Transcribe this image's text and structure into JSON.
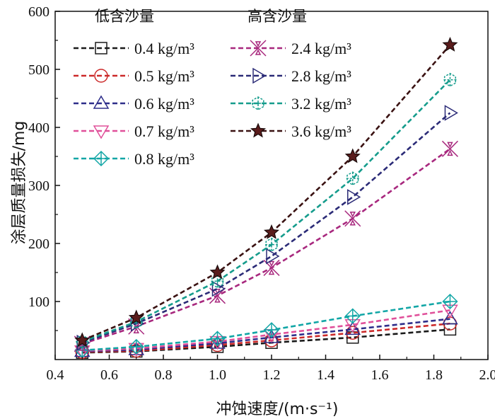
{
  "chart_data": {
    "type": "line",
    "xlabel": "冲蚀速度/(m·s⁻¹)",
    "ylabel": "涂层质量损失/mg",
    "xlim": [
      0.4,
      2.0
    ],
    "ylim": [
      0,
      600
    ],
    "xticks": [
      "0.4",
      "0.6",
      "0.8",
      "1.0",
      "1.2",
      "1.4",
      "1.6",
      "1.8",
      "2.0"
    ],
    "yticks": [
      "100",
      "200",
      "300",
      "400",
      "500",
      "600"
    ],
    "grid": false,
    "x": [
      0.5,
      0.7,
      1.0,
      1.2,
      1.5,
      1.86
    ],
    "legend_groups": [
      {
        "title": "低含沙量",
        "placement": "top-left"
      },
      {
        "title": "高含沙量",
        "placement": "top-center"
      }
    ],
    "series": [
      {
        "name": "0.4 kg/m³",
        "group": 0,
        "color": "#1a1a1a",
        "marker": "square",
        "values": [
          12,
          14,
          22,
          29,
          38,
          52
        ]
      },
      {
        "name": "0.5 kg/m³",
        "group": 0,
        "color": "#cc2a2a",
        "marker": "circle",
        "values": [
          13,
          15,
          25,
          33,
          46,
          62
        ]
      },
      {
        "name": "0.6 kg/m³",
        "group": 0,
        "color": "#2e2e8a",
        "marker": "triangle-up",
        "values": [
          14,
          17,
          28,
          38,
          52,
          70
        ]
      },
      {
        "name": "0.7 kg/m³",
        "group": 0,
        "color": "#e0509a",
        "marker": "triangle-down",
        "values": [
          15,
          19,
          31,
          43,
          60,
          85
        ]
      },
      {
        "name": "0.8 kg/m³",
        "group": 0,
        "color": "#12a6a6",
        "marker": "diamond-cross",
        "values": [
          16,
          22,
          36,
          51,
          75,
          100
        ]
      },
      {
        "name": "2.4 kg/m³",
        "group": 1,
        "color": "#a8287e",
        "marker": "x-cross",
        "values": [
          27,
          57,
          110,
          158,
          243,
          363
        ]
      },
      {
        "name": "2.8 kg/m³",
        "group": 1,
        "color": "#2b2b77",
        "marker": "triangle-right",
        "values": [
          29,
          62,
          122,
          178,
          280,
          425
        ]
      },
      {
        "name": "3.2 kg/m³",
        "group": 1,
        "color": "#159c8c",
        "marker": "hex-cross",
        "values": [
          31,
          65,
          135,
          198,
          312,
          482
        ]
      },
      {
        "name": "3.6 kg/m³",
        "group": 1,
        "color": "#3a1212",
        "marker": "star",
        "values": [
          33,
          72,
          150,
          219,
          350,
          542
        ]
      }
    ]
  }
}
